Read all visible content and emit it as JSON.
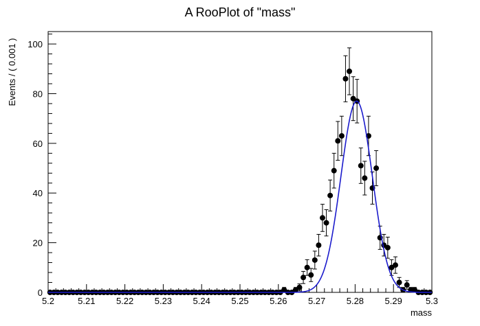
{
  "chart_data": {
    "type": "scatter",
    "title": "A RooPlot of \"mass\"",
    "xlabel": "mass",
    "ylabel": "Events / ( 0.001 )",
    "xlim": [
      5.2,
      5.3
    ],
    "ylim": [
      0,
      105
    ],
    "x_ticks": [
      "5.2",
      "5.21",
      "5.22",
      "5.23",
      "5.24",
      "5.25",
      "5.26",
      "5.27",
      "5.28",
      "5.29",
      "5.3"
    ],
    "y_ticks": [
      "0",
      "20",
      "40",
      "60",
      "80",
      "100"
    ],
    "grid": false,
    "legend": "none",
    "colors": {
      "points": "#000000",
      "fit": "#1a1acc"
    },
    "series": [
      {
        "type": "points_with_errors",
        "x": [
          5.2005,
          5.2015,
          5.2025,
          5.2035,
          5.2045,
          5.2055,
          5.2065,
          5.2075,
          5.2085,
          5.2095,
          5.2105,
          5.2115,
          5.2125,
          5.2135,
          5.2145,
          5.2155,
          5.2165,
          5.2175,
          5.2185,
          5.2195,
          5.2205,
          5.2215,
          5.2225,
          5.2235,
          5.2245,
          5.2255,
          5.2265,
          5.2275,
          5.2285,
          5.2295,
          5.2305,
          5.2315,
          5.2325,
          5.2335,
          5.2345,
          5.2355,
          5.2365,
          5.2375,
          5.2385,
          5.2395,
          5.2405,
          5.2415,
          5.2425,
          5.2435,
          5.2445,
          5.2455,
          5.2465,
          5.2475,
          5.2485,
          5.2495,
          5.2505,
          5.2515,
          5.2525,
          5.2535,
          5.2545,
          5.2555,
          5.2565,
          5.2575,
          5.2585,
          5.2595,
          5.2605,
          5.2615,
          5.2625,
          5.2635,
          5.2645,
          5.2655,
          5.2665,
          5.2675,
          5.2685,
          5.2695,
          5.2705,
          5.2715,
          5.2725,
          5.2735,
          5.2745,
          5.2755,
          5.2765,
          5.2775,
          5.2785,
          5.2795,
          5.2805,
          5.2815,
          5.2825,
          5.2835,
          5.2845,
          5.2855,
          5.2865,
          5.2875,
          5.2885,
          5.2895,
          5.2905,
          5.2915,
          5.2925,
          5.2935,
          5.2945,
          5.2955,
          5.2965,
          5.2975,
          5.2985,
          5.2995
        ],
        "y": [
          0,
          0,
          0,
          0,
          0,
          0,
          0,
          0,
          0,
          0,
          0,
          0,
          0,
          0,
          0,
          0,
          0,
          0,
          0,
          0,
          0,
          0,
          0,
          0,
          0,
          0,
          0,
          0,
          0,
          0,
          0,
          0,
          0,
          0,
          0,
          0,
          0,
          0,
          0,
          0,
          0,
          0,
          0,
          0,
          0,
          0,
          0,
          0,
          0,
          0,
          0,
          0,
          0,
          0,
          0,
          0,
          0,
          0,
          0,
          0,
          0,
          1,
          0,
          0,
          1,
          2,
          6,
          10,
          7,
          13,
          19,
          30,
          28,
          39,
          49,
          61,
          63,
          86,
          89,
          78,
          77,
          51,
          46,
          63,
          42,
          50,
          22,
          19,
          18,
          10,
          11,
          4,
          1,
          3,
          1,
          1,
          0,
          0,
          0,
          0
        ]
      },
      {
        "type": "fit_curve",
        "model": "gaussian",
        "peak": 77,
        "mean": 5.2804,
        "sigma": 0.0041
      }
    ]
  }
}
